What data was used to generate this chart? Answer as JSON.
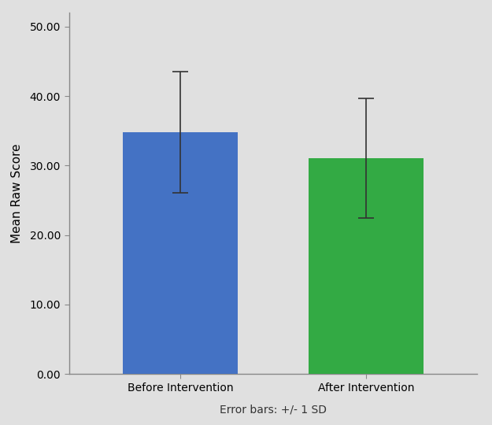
{
  "categories": [
    "Before Intervention",
    "After Intervention"
  ],
  "values": [
    34.8,
    31.1
  ],
  "errors": [
    8.7,
    8.6
  ],
  "bar_colors": [
    "#4472C4",
    "#33AA44"
  ],
  "ylabel": "Mean Raw Score",
  "xlabel": "Error bars: +/- 1 SD",
  "ylim": [
    0,
    52
  ],
  "yticks": [
    0.0,
    10.0,
    20.0,
    30.0,
    40.0,
    50.0
  ],
  "ytick_labels": [
    "0.00",
    "10.00",
    "20.00",
    "30.00",
    "40.00",
    "50.00"
  ],
  "figure_color": "#E0E0E0",
  "plot_bg_color": "#E0E0E0",
  "bar_width": 0.62,
  "errorbar_color": "#333333",
  "errorbar_linewidth": 1.2,
  "errorbar_capsize": 7,
  "errorbar_capthick": 1.2,
  "ylabel_fontsize": 11,
  "xlabel_fontsize": 10,
  "tick_fontsize": 10
}
